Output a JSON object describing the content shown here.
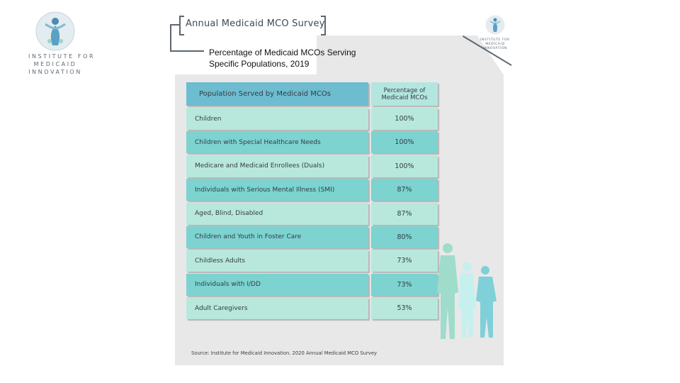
{
  "logo": {
    "lines": [
      "INSTITUTE FOR",
      "MEDICAID",
      "INNOVATION"
    ]
  },
  "header": {
    "survey_title": "Annual Medicaid MCO Survey"
  },
  "chart": {
    "title_line1": "Percentage of Medicaid MCOs Serving",
    "title_line2": "Specific Populations, 2019",
    "columns": {
      "population": "Population Served by Medicaid MCOs",
      "percentage_line1": "Percentage of",
      "percentage_line2": "Medicaid MCOs"
    },
    "rows": [
      {
        "population": "Children",
        "value": "100%"
      },
      {
        "population": "Children with Special Healthcare Needs",
        "value": "100%"
      },
      {
        "population": "Medicare and Medicaid Enrollees (Duals)",
        "value": "100%"
      },
      {
        "population": "Individuals with Serious Mental Illness (SMI)",
        "value": "87%"
      },
      {
        "population": "Aged, Blind, Disabled",
        "value": "87%"
      },
      {
        "population": "Children and Youth in Foster Care",
        "value": "80%"
      },
      {
        "population": "Childless Adults",
        "value": "73%"
      },
      {
        "population": "Individuals with I/DD",
        "value": "73%"
      },
      {
        "population": "Adult Caregivers",
        "value": "53%"
      }
    ],
    "source": "Source: Institute for Medicaid Innovation. 2020 Annual Medicaid MCO Survey"
  },
  "colors": {
    "header_population": "#6dbcd0",
    "header_percentage": "#b3e6df",
    "row_light": "#b8e8dc",
    "row_dark": "#7cd3d0",
    "panel": "#e8e8e8"
  }
}
